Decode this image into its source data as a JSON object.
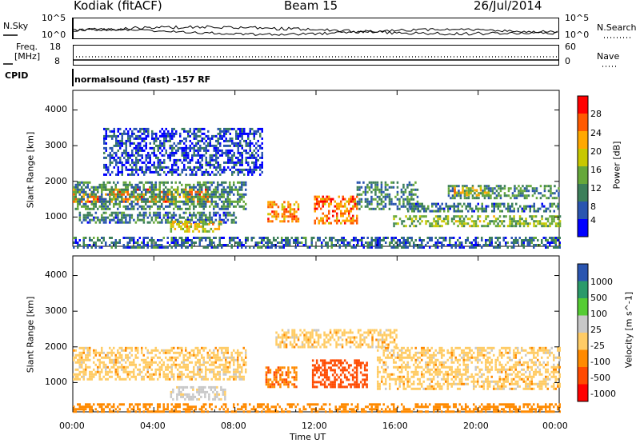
{
  "header": {
    "site": "Kodiak (fitACF)",
    "beam": "Beam 15",
    "date": "26/Jul/2014"
  },
  "top_panels": {
    "nsky": {
      "label": "N.Sky",
      "left_ticks": [
        "10^5",
        "10^0"
      ],
      "right_ticks": [
        "10^5",
        "10^0"
      ],
      "right_label": "N.Search"
    },
    "freq": {
      "label_line1": "Freq.",
      "label_line2": "[MHz]",
      "left_ticks": [
        "18",
        "8"
      ],
      "right_ticks": [
        "60",
        "0"
      ],
      "right_label": "Nave"
    },
    "cpid": {
      "label": "CPID",
      "text": "normalsound (fast) -157 RF"
    }
  },
  "colors": {
    "power_scale": [
      "#0000ff",
      "#2a55b0",
      "#3c7f5a",
      "#66a83a",
      "#c8c800",
      "#ffa800",
      "#ff5a00",
      "#ff0000"
    ],
    "velocity_scale": [
      "#ff0000",
      "#ff4a00",
      "#ff8a00",
      "#ffcc66",
      "#c8c8c8",
      "#55cc33",
      "#2a9a6a",
      "#2a55b0"
    ]
  },
  "chart_data": [
    {
      "type": "heatmap",
      "panel": "power",
      "ylabel": "Slant Range [km]",
      "xlabel": "",
      "ylim": [
        180,
        4550
      ],
      "xlim": [
        0,
        24
      ],
      "yticks": [
        1000,
        2000,
        3000,
        4000
      ],
      "ytick_labels": [
        "1000",
        "2000",
        "3000",
        "4000"
      ],
      "colorbar": {
        "label": "Power [dB]",
        "ticks": [
          "28",
          "24",
          "20",
          "16",
          "12",
          "8",
          "4"
        ],
        "range": [
          0,
          30
        ]
      },
      "regions": [
        {
          "t0": 0.0,
          "t1": 6.8,
          "r0": 1450,
          "r1": 1800,
          "level": 22
        },
        {
          "t0": 0.0,
          "t1": 8.5,
          "r0": 1250,
          "r1": 2000,
          "level": 10
        },
        {
          "t0": 0.3,
          "t1": 8.0,
          "r0": 850,
          "r1": 1150,
          "level": 8
        },
        {
          "t0": 4.8,
          "t1": 7.3,
          "r0": 600,
          "r1": 900,
          "level": 18
        },
        {
          "t0": 1.5,
          "t1": 9.3,
          "r0": 2200,
          "r1": 3500,
          "level": 5
        },
        {
          "t0": 9.6,
          "t1": 11.1,
          "r0": 850,
          "r1": 1450,
          "level": 22
        },
        {
          "t0": 11.9,
          "t1": 14.0,
          "r0": 850,
          "r1": 1600,
          "level": 23
        },
        {
          "t0": 14.0,
          "t1": 17.0,
          "r0": 1200,
          "r1": 2000,
          "level": 9
        },
        {
          "t0": 15.8,
          "t1": 24.0,
          "r0": 750,
          "r1": 1050,
          "level": 14
        },
        {
          "t0": 16.5,
          "t1": 24.0,
          "r0": 1150,
          "r1": 1400,
          "level": 8
        },
        {
          "t0": 18.5,
          "t1": 24.0,
          "r0": 1500,
          "r1": 1900,
          "level": 10
        },
        {
          "t0": 18.8,
          "t1": 20.5,
          "r0": 1600,
          "r1": 1850,
          "level": 19
        },
        {
          "t0": 0.0,
          "t1": 24.0,
          "r0": 180,
          "r1": 450,
          "level": 7
        }
      ]
    },
    {
      "type": "heatmap",
      "panel": "velocity",
      "ylabel": "Slant Range [km]",
      "xlabel": "Time UT",
      "ylim": [
        180,
        4550
      ],
      "xlim": [
        0,
        24
      ],
      "yticks": [
        1000,
        2000,
        3000,
        4000
      ],
      "ytick_labels": [
        "1000",
        "2000",
        "3000",
        "4000"
      ],
      "xticks": [
        0,
        4,
        8,
        12,
        16,
        20,
        24
      ],
      "xtick_labels": [
        "00:00",
        "04:00",
        "08:00",
        "12:00",
        "16:00",
        "20:00",
        "00:00"
      ],
      "colorbar": {
        "label": "Velocity [m s^-1]",
        "ticks": [
          "1000",
          "500",
          "100",
          "25",
          "-25",
          "-100",
          "-500",
          "-1000"
        ]
      },
      "regions": [
        {
          "t0": 0.0,
          "t1": 8.5,
          "r0": 1100,
          "r1": 2000,
          "level": 0
        },
        {
          "t0": 4.8,
          "t1": 7.5,
          "r0": 550,
          "r1": 900,
          "level": 45
        },
        {
          "t0": 9.5,
          "t1": 11.0,
          "r0": 850,
          "r1": 1450,
          "level": -90
        },
        {
          "t0": 11.8,
          "t1": 14.5,
          "r0": 900,
          "r1": 1650,
          "level": -140
        },
        {
          "t0": 10.0,
          "t1": 16.0,
          "r0": 2000,
          "r1": 2500,
          "level": 0
        },
        {
          "t0": 15.0,
          "t1": 24.0,
          "r0": 800,
          "r1": 2000,
          "level": 0
        },
        {
          "t0": 0.0,
          "t1": 24.0,
          "r0": 180,
          "r1": 420,
          "level": -60
        }
      ]
    }
  ]
}
